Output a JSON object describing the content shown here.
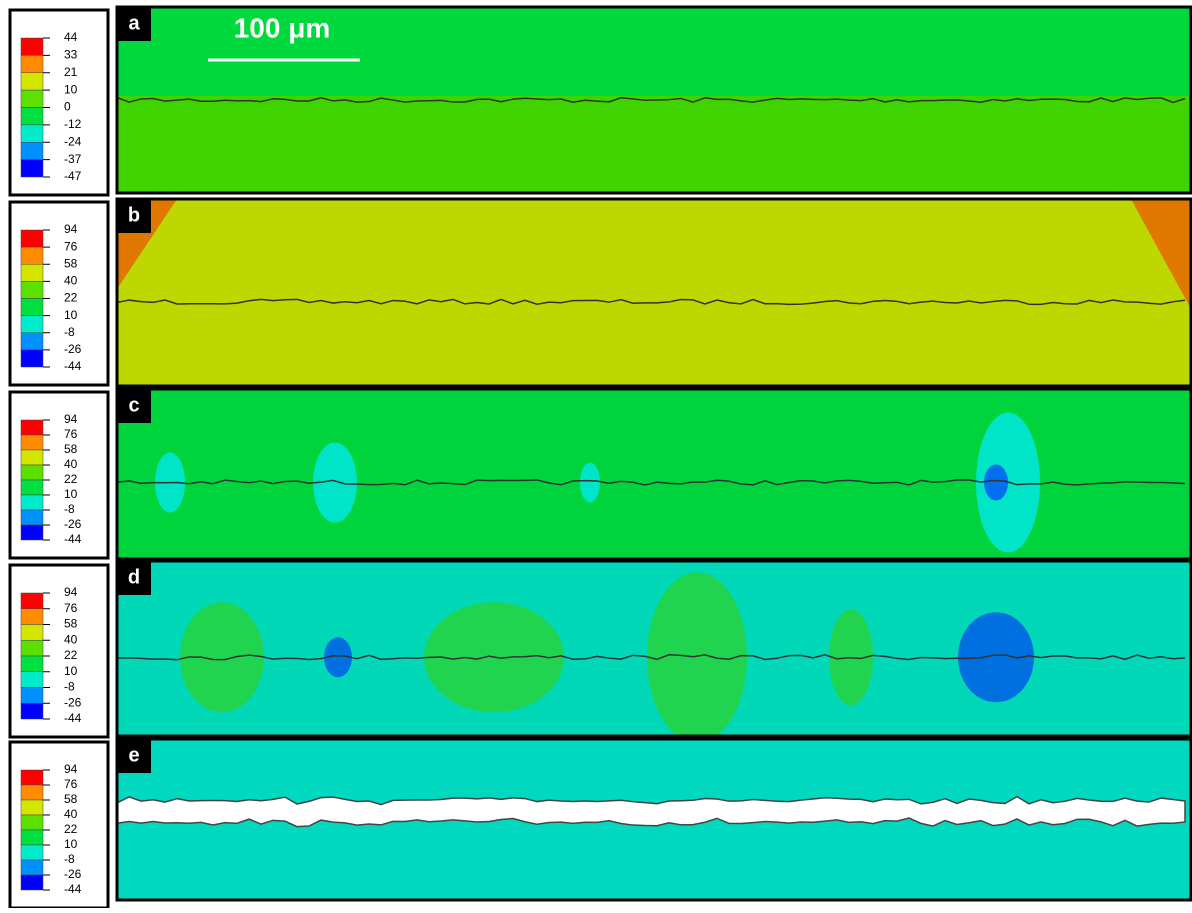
{
  "panels": [
    {
      "label": "a",
      "legend": [
        44,
        33,
        21,
        10,
        0,
        -12,
        -24,
        -37,
        -47
      ]
    },
    {
      "label": "b",
      "legend": [
        94,
        76,
        58,
        40,
        22,
        10,
        -8,
        -26,
        -44
      ]
    },
    {
      "label": "c",
      "legend": [
        94,
        76,
        58,
        40,
        22,
        10,
        -8,
        -26,
        -44
      ]
    },
    {
      "label": "d",
      "legend": [
        94,
        76,
        58,
        40,
        22,
        10,
        -8,
        -26,
        -44
      ]
    },
    {
      "label": "e",
      "legend": [
        94,
        76,
        58,
        40,
        22,
        10,
        -8,
        -26,
        -44
      ]
    }
  ],
  "scale_bar": "100 μm"
}
